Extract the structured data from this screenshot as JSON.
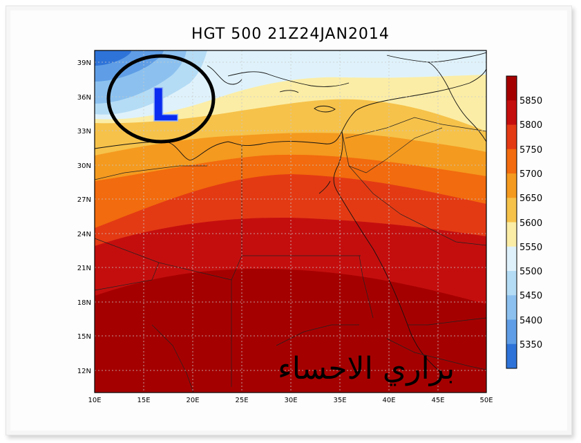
{
  "title": "HGT 500 21Z24JAN2014",
  "watermark": "براري الاحساء",
  "low_marker": "L",
  "lat_labels": [
    "39N",
    "36N",
    "33N",
    "30N",
    "27N",
    "24N",
    "21N",
    "18N",
    "15N",
    "12N"
  ],
  "lon_labels": [
    "10E",
    "15E",
    "20E",
    "25E",
    "30E",
    "35E",
    "40E",
    "45E",
    "50E"
  ],
  "colorbar": {
    "labels": [
      "5850",
      "5800",
      "5750",
      "5700",
      "5650",
      "5600",
      "5550",
      "5500",
      "5450",
      "5400",
      "5350"
    ],
    "colors": [
      "#a50000",
      "#c40e0e",
      "#e33a14",
      "#f26b0e",
      "#f49a1f",
      "#f6c24a",
      "#fbeda6",
      "#dff2fb",
      "#b5dcf5",
      "#8cc1ef",
      "#5f9ee6",
      "#2e73d8"
    ]
  },
  "colors": {
    "low_letter": "#0a2cf0",
    "ring": "#000000"
  }
}
